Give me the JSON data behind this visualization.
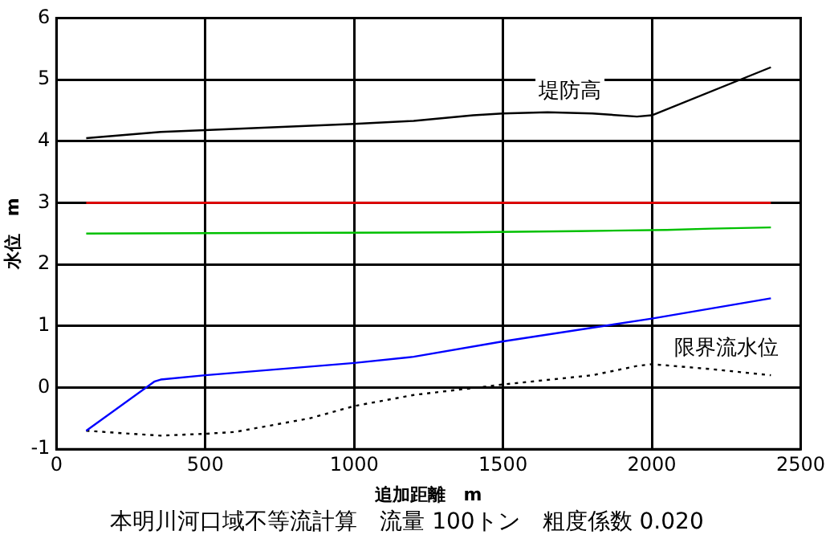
{
  "chart_data": {
    "type": "line",
    "title": "本明川河口域不等流計算　流量 100トン　粗度係数 0.020",
    "xlabel": "追加距離　m",
    "ylabel": "水位　m",
    "xlim": [
      0,
      2500
    ],
    "xticks": [
      0,
      500,
      1000,
      1500,
      2000,
      2500
    ],
    "ylim": [
      -1,
      6
    ],
    "yticks": [
      -1,
      0,
      1,
      2,
      3,
      4,
      5,
      6
    ],
    "grid": true,
    "legend": false,
    "marker": "none",
    "series": [
      {
        "name": "堤防高",
        "color": "#000000",
        "x": [
          100,
          350,
          500,
          1000,
          1200,
          1400,
          1500,
          1650,
          1800,
          1950,
          2000,
          2400
        ],
        "values": [
          4.05,
          4.15,
          4.18,
          4.28,
          4.33,
          4.42,
          4.45,
          4.47,
          4.45,
          4.4,
          4.42,
          5.2
        ]
      },
      {
        "color": "#ff0000",
        "x": [
          100,
          2400
        ],
        "values": [
          3,
          3
        ]
      },
      {
        "color": "#00c000",
        "x": [
          100,
          1350,
          1750,
          2050,
          2200,
          2400
        ],
        "values": [
          2.5,
          2.52,
          2.54,
          2.56,
          2.58,
          2.6
        ]
      },
      {
        "color": "#0000ff",
        "x": [
          100,
          330,
          350,
          500,
          1000,
          1200,
          1500,
          2000,
          2400
        ],
        "values": [
          -0.7,
          0.1,
          0.13,
          0.2,
          0.4,
          0.5,
          0.75,
          1.12,
          1.45
        ]
      },
      {
        "name": "限界流水位",
        "color": "#000000",
        "line_style": "dotted",
        "x": [
          100,
          250,
          350,
          500,
          600,
          850,
          1000,
          1200,
          1500,
          1800,
          1950,
          2000,
          2200,
          2400
        ],
        "values": [
          -0.7,
          -0.75,
          -0.78,
          -0.75,
          -0.72,
          -0.5,
          -0.3,
          -0.12,
          0.05,
          0.2,
          0.35,
          0.38,
          0.3,
          0.2
        ]
      }
    ]
  }
}
